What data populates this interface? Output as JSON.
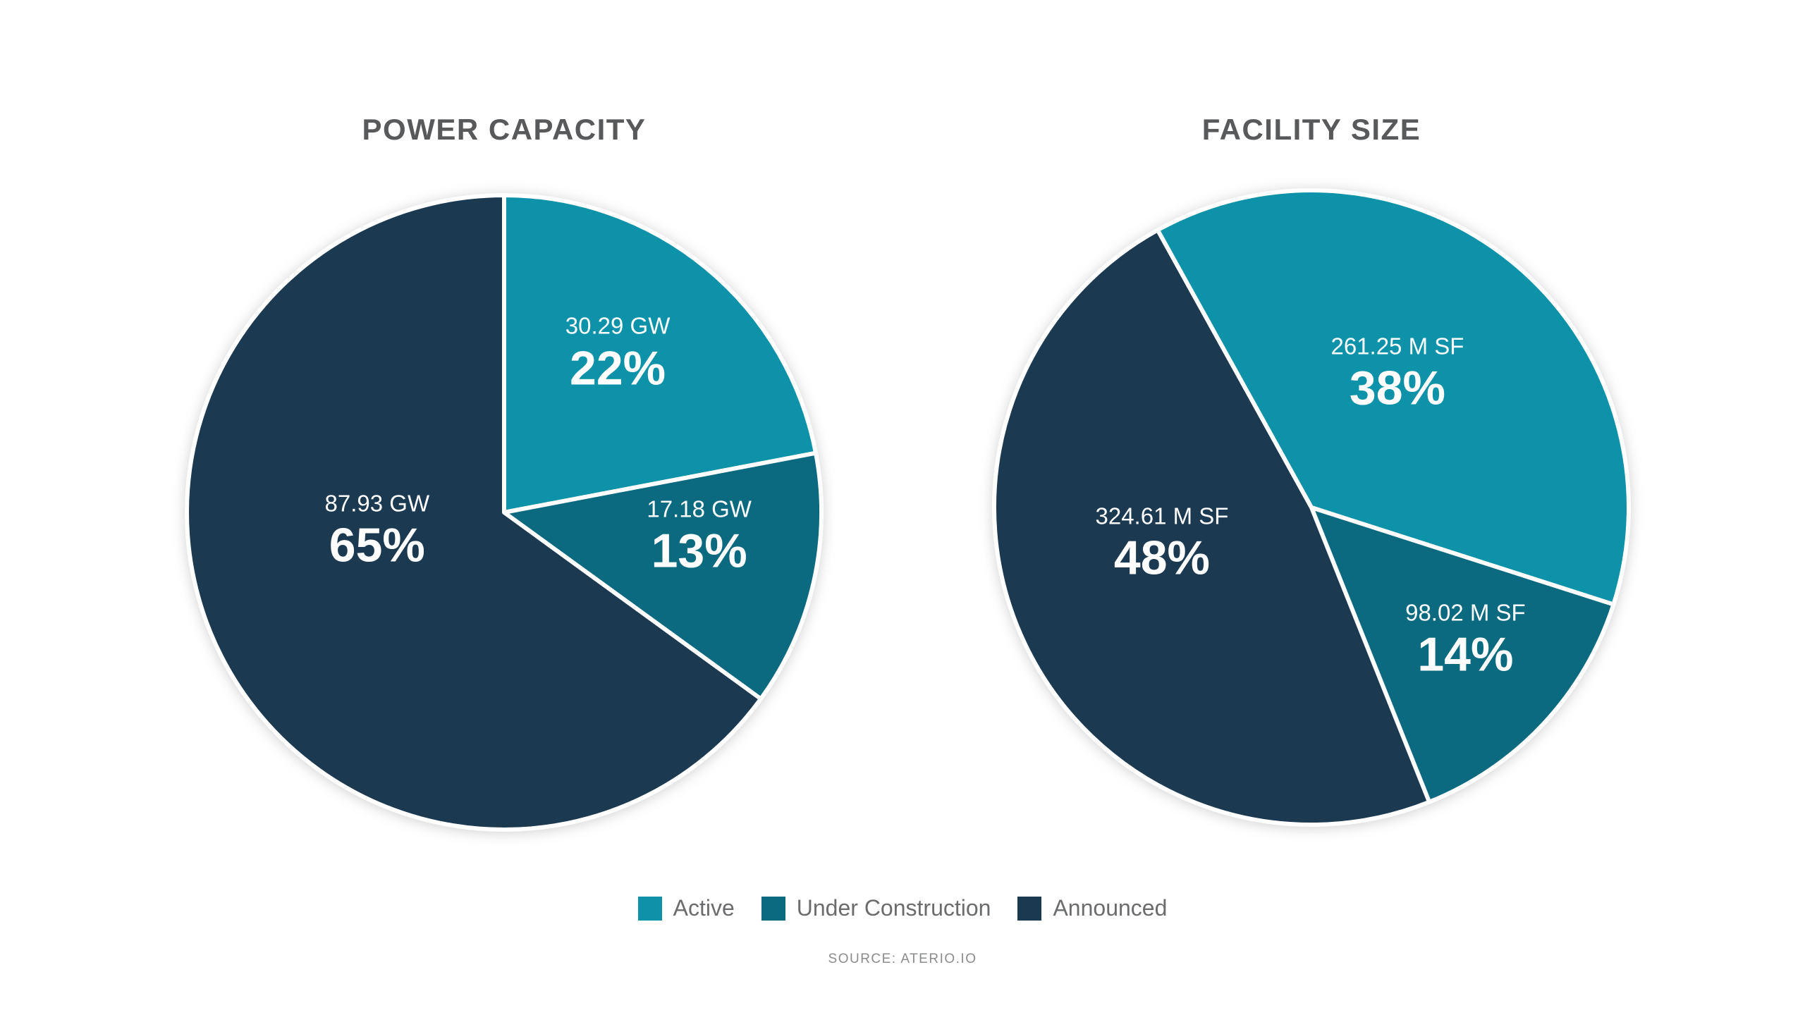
{
  "chart_data": [
    {
      "type": "pie",
      "title": "POWER CAPACITY",
      "unit": "GW",
      "start_angle_deg": 0,
      "order": "clockwise",
      "legend_position": "bottom",
      "slices": [
        {
          "label": "Active",
          "value": 30.29,
          "pct": 22,
          "value_label": "30.29 GW",
          "pct_label": "22%"
        },
        {
          "label": "Under Construction",
          "value": 17.18,
          "pct": 13,
          "value_label": "17.18 GW",
          "pct_label": "13%"
        },
        {
          "label": "Announced",
          "value": 87.93,
          "pct": 65,
          "value_label": "87.93 GW",
          "pct_label": "65%"
        }
      ]
    },
    {
      "type": "pie",
      "title": "FACILITY SIZE",
      "unit": "M SF",
      "start_angle_deg": -29,
      "order": "clockwise",
      "legend_position": "bottom",
      "slices": [
        {
          "label": "Active",
          "value": 261.25,
          "pct": 38,
          "value_label": "261.25 M SF",
          "pct_label": "38%"
        },
        {
          "label": "Under Construction",
          "value": 98.02,
          "pct": 14,
          "value_label": "98.02 M SF",
          "pct_label": "14%"
        },
        {
          "label": "Announced",
          "value": 324.61,
          "pct": 48,
          "value_label": "324.61 M SF",
          "pct_label": "48%"
        }
      ]
    }
  ],
  "legend": {
    "items": [
      {
        "label": "Active",
        "color": "#0E92A9"
      },
      {
        "label": "Under Construction",
        "color": "#0C6A80"
      },
      {
        "label": "Announced",
        "color": "#1C3952"
      }
    ]
  },
  "colors": {
    "title_text": "#58595B",
    "legend_text": "#6B6C6E",
    "source_text": "#8B8C8E",
    "slice_divider": "#FFFFFF",
    "label_text": "#FFFFFF"
  },
  "source": "SOURCE: ATERIO.IO"
}
